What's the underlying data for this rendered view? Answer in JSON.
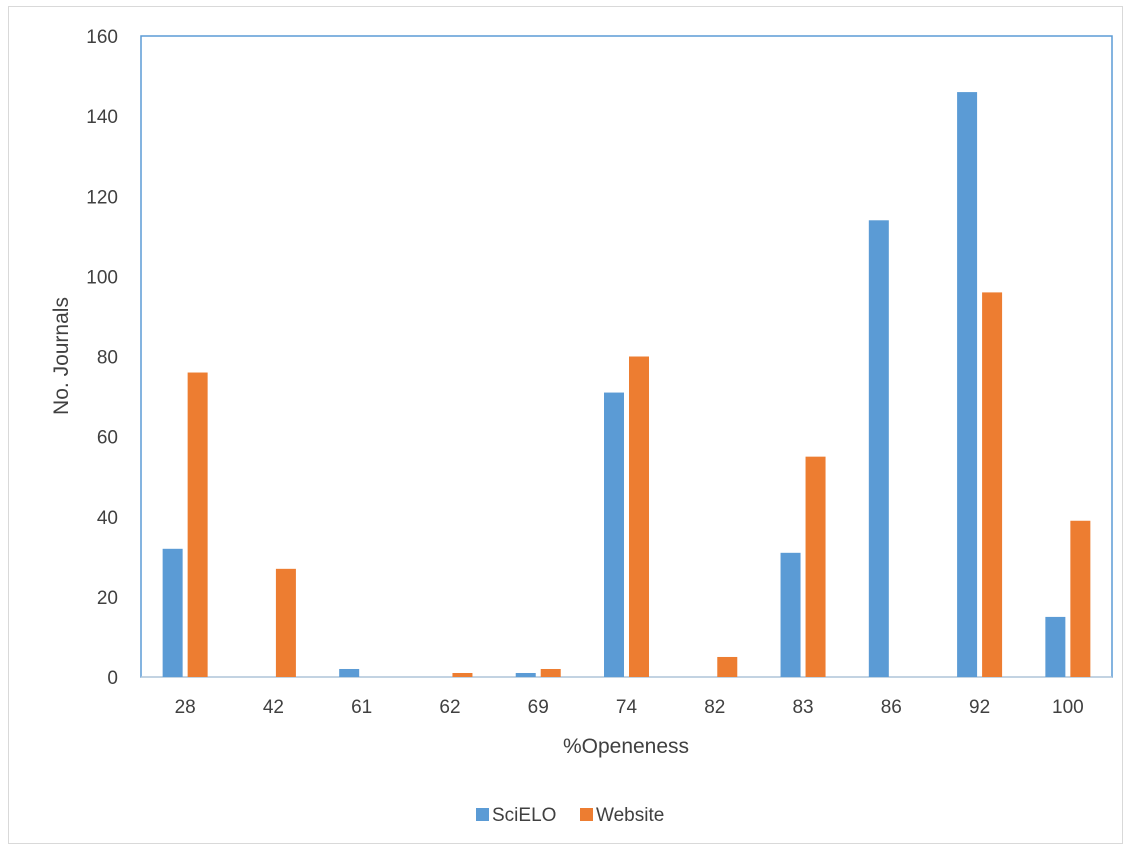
{
  "chart_data": {
    "type": "bar",
    "title": "",
    "xlabel": "%Openeness",
    "ylabel": "No. Journals",
    "ylim": [
      0,
      160
    ],
    "yticks": [
      0,
      20,
      40,
      60,
      80,
      100,
      120,
      140,
      160
    ],
    "categories": [
      "28",
      "42",
      "61",
      "62",
      "69",
      "74",
      "82",
      "83",
      "86",
      "92",
      "100"
    ],
    "series": [
      {
        "name": "SciELO",
        "color": "#5B9BD5",
        "values": [
          32,
          0,
          2,
          0,
          1,
          71,
          0,
          31,
          114,
          146,
          15
        ]
      },
      {
        "name": "Website",
        "color": "#ED7D31",
        "values": [
          76,
          27,
          0,
          1,
          2,
          80,
          5,
          55,
          0,
          96,
          39
        ]
      }
    ],
    "grid": false,
    "legend_position": "bottom"
  }
}
